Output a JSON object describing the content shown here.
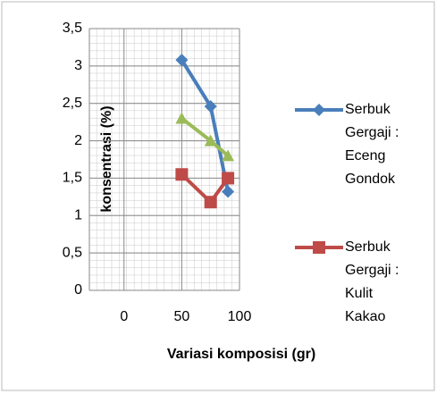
{
  "chart_data": {
    "type": "line",
    "x_label": "Variasi komposisi (gr)",
    "y_label": "konsentrasi (%)",
    "x": [
      50,
      75,
      90
    ],
    "series": [
      {
        "name": "Serbuk Gergaji : Eceng Gondok",
        "color": "#4a7ebb",
        "marker": "diamond",
        "values": [
          3.08,
          2.46,
          1.32
        ]
      },
      {
        "color": "#9bbb59",
        "marker": "triangle",
        "values": [
          2.3,
          2.0,
          1.8
        ]
      },
      {
        "name": "Serbuk Gergaji : Kulit Kakao",
        "color": "#be4b48",
        "marker": "square",
        "values": [
          1.55,
          1.18,
          1.5
        ]
      }
    ],
    "xlim": [
      -30,
      100
    ],
    "xticks": [
      0,
      50,
      100
    ],
    "ylim": [
      0,
      3.5
    ],
    "yticks": [
      0,
      {
        "value": 0.5,
        "label": "0,5"
      },
      1,
      {
        "value": 1.5,
        "label": "1,5"
      },
      2,
      {
        "value": 2.5,
        "label": "2,5"
      },
      3,
      {
        "value": 3.5,
        "label": "3,5"
      }
    ],
    "grid": true,
    "legend": "right"
  }
}
